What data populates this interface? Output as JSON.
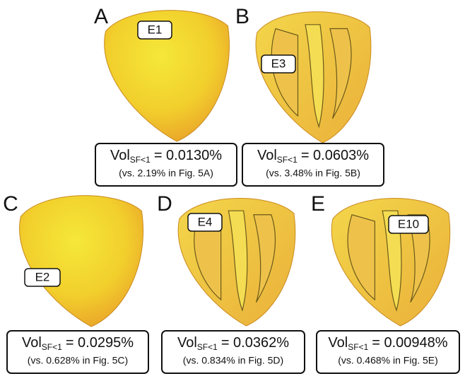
{
  "panels": [
    {
      "letter": "A",
      "marker": "E1",
      "vol": {
        "base": "Vol",
        "sub": "SF<1",
        "rest": "= 0.0130%"
      },
      "note": "(vs. 2.19% in Fig. 5A)"
    },
    {
      "letter": "B",
      "marker": "E3",
      "vol": {
        "base": "Vol",
        "sub": "SF<1",
        "rest": "= 0.0603%"
      },
      "note": "(vs. 3.48% in Fig. 5B)"
    },
    {
      "letter": "C",
      "marker": "E2",
      "vol": {
        "base": "Vol",
        "sub": "SF<1",
        "rest": "= 0.0295%"
      },
      "note": "(vs. 0.628% in Fig. 5C)"
    },
    {
      "letter": "D",
      "marker": "E4",
      "vol": {
        "base": "Vol",
        "sub": "SF<1",
        "rest": "= 0.0362%"
      },
      "note": "(vs. 0.834% in Fig. 5D)"
    },
    {
      "letter": "E",
      "marker": "E10",
      "vol": {
        "base": "Vol",
        "sub": "SF<1",
        "rest": "= 0.00948%"
      },
      "note": "(vs. 0.468% in Fig. 5E)"
    }
  ]
}
